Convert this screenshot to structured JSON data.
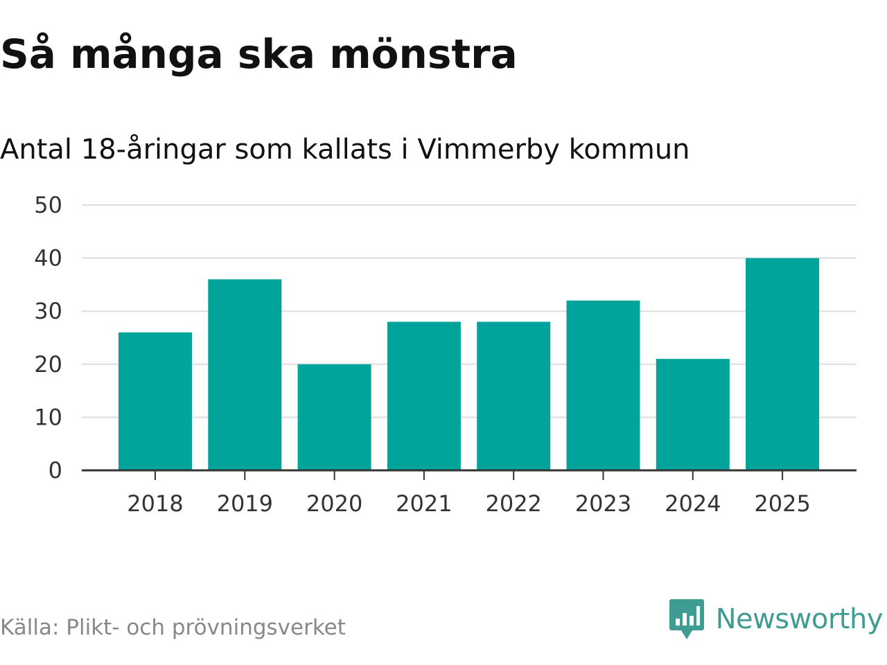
{
  "header": {
    "title": "Så många ska mönstra",
    "subtitle": "Antal 18-åringar som kallats i Vimmerby kommun"
  },
  "footer": {
    "source": "Källa: Plikt- och prövningsverket",
    "brand": "Newsworthy",
    "brand_icon": "newsworthy-logo-icon"
  },
  "colors": {
    "bar": "#00a49a",
    "grid": "#dddddd",
    "axis": "#333333",
    "brand": "#3f9c92"
  },
  "chart_data": {
    "type": "bar",
    "title": "Så många ska mönstra",
    "subtitle": "Antal 18-åringar som kallats i Vimmerby kommun",
    "xlabel": "",
    "ylabel": "",
    "categories": [
      "2018",
      "2019",
      "2020",
      "2021",
      "2022",
      "2023",
      "2024",
      "2025"
    ],
    "values": [
      26,
      36,
      20,
      28,
      28,
      32,
      21,
      40
    ],
    "ylim": [
      0,
      50
    ],
    "yticks": [
      "0",
      "10",
      "20",
      "30",
      "40",
      "50"
    ],
    "grid": true,
    "legend": "none"
  }
}
